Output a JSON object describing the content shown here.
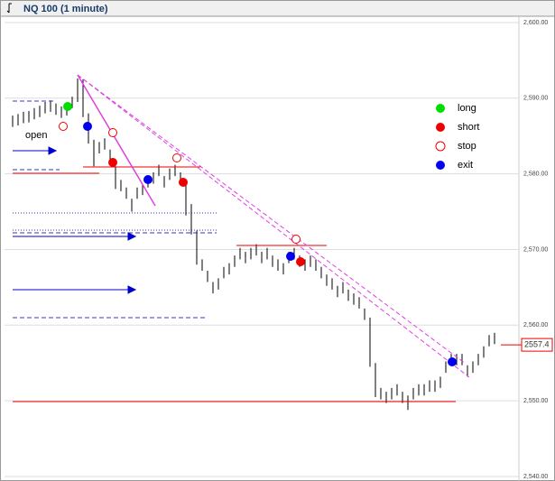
{
  "chart_data": {
    "type": "ohlc",
    "title": "NQ 100 (1 minute)",
    "ylim": [
      2539.76,
      2600.83
    ],
    "yticks": [
      {
        "value": 2540,
        "label": "2,540.00"
      },
      {
        "value": 2550,
        "label": "2,550.00"
      },
      {
        "value": 2560,
        "label": "2,560.00"
      },
      {
        "value": 2570,
        "label": "2,570.00"
      },
      {
        "value": 2580,
        "label": "2,580.00"
      },
      {
        "value": 2590,
        "label": "2,590.00"
      },
      {
        "value": 2600,
        "label": "2,600.00"
      }
    ],
    "grid": true,
    "color": "#000000",
    "high": [
      2587.7,
      2587.9,
      2588.2,
      2588.3,
      2588.7,
      2589.0,
      2589.5,
      2589.7,
      2589.3,
      2588.9,
      2589.2,
      2590.2,
      2592.6,
      2592.5,
      2588.0,
      2584.5,
      2584.2,
      2584.7,
      2583.2,
      2581.0,
      2579.2,
      2578.2,
      2576.7,
      2578.2,
      2578.7,
      2579.7,
      2580.2,
      2581.2,
      2579.7,
      2580.7,
      2581.2,
      2580.2,
      2578.5,
      2576.0,
      2572.5,
      2568.7,
      2567.2,
      2565.7,
      2566.2,
      2567.7,
      2568.2,
      2569.2,
      2570.2,
      2569.7,
      2570.2,
      2570.7,
      2569.7,
      2570.2,
      2569.2,
      2568.7,
      2568.2,
      2569.7,
      2570.2,
      2569.2,
      2568.7,
      2569.2,
      2568.7,
      2567.7,
      2566.7,
      2566.2,
      2565.2,
      2565.7,
      2564.7,
      2564.2,
      2563.7,
      2562.2,
      2561.0,
      2555.0,
      2551.7,
      2551.2,
      2551.7,
      2552.2,
      2551.2,
      2550.7,
      2551.7,
      2552.2,
      2552.2,
      2552.7,
      2552.7,
      2553.2,
      2555.2,
      2556.2,
      2556.2,
      2556.2,
      2554.7,
      2555.2,
      2556.2,
      2557.2,
      2558.7,
      2559.0
    ],
    "low": [
      2586.2,
      2586.4,
      2586.7,
      2586.8,
      2587.2,
      2587.5,
      2588.0,
      2588.2,
      2587.8,
      2587.4,
      2587.7,
      2588.7,
      2589.5,
      2587.5,
      2584.0,
      2581.0,
      2582.7,
      2583.2,
      2581.7,
      2578.0,
      2577.7,
      2576.7,
      2575.0,
      2576.7,
      2577.2,
      2578.2,
      2578.7,
      2579.7,
      2578.2,
      2579.2,
      2579.7,
      2578.7,
      2574.5,
      2572.0,
      2568.0,
      2567.2,
      2565.7,
      2564.2,
      2564.7,
      2566.2,
      2566.7,
      2567.7,
      2568.7,
      2568.2,
      2568.7,
      2569.2,
      2568.2,
      2568.7,
      2567.7,
      2567.2,
      2566.7,
      2568.2,
      2568.7,
      2567.7,
      2567.2,
      2567.7,
      2567.2,
      2566.2,
      2565.2,
      2564.7,
      2563.7,
      2564.2,
      2563.2,
      2562.7,
      2562.2,
      2560.7,
      2554.5,
      2550.5,
      2550.2,
      2549.7,
      2550.2,
      2550.7,
      2549.7,
      2548.8,
      2550.2,
      2550.7,
      2550.7,
      2551.2,
      2551.2,
      2551.7,
      2553.7,
      2554.7,
      2554.7,
      2554.7,
      2553.2,
      2553.7,
      2554.7,
      2555.7,
      2557.2,
      2557.5
    ],
    "legend": [
      {
        "name": "long",
        "color": "#00e000",
        "hollow": false
      },
      {
        "name": "short",
        "color": "#ee0000",
        "hollow": false
      },
      {
        "name": "stop",
        "color": "#ee0000",
        "hollow": true
      },
      {
        "name": "exit",
        "color": "#0000ee",
        "hollow": false
      }
    ],
    "annotation": "open",
    "last_price": {
      "value": 2557.4,
      "label": "2557.4"
    }
  }
}
